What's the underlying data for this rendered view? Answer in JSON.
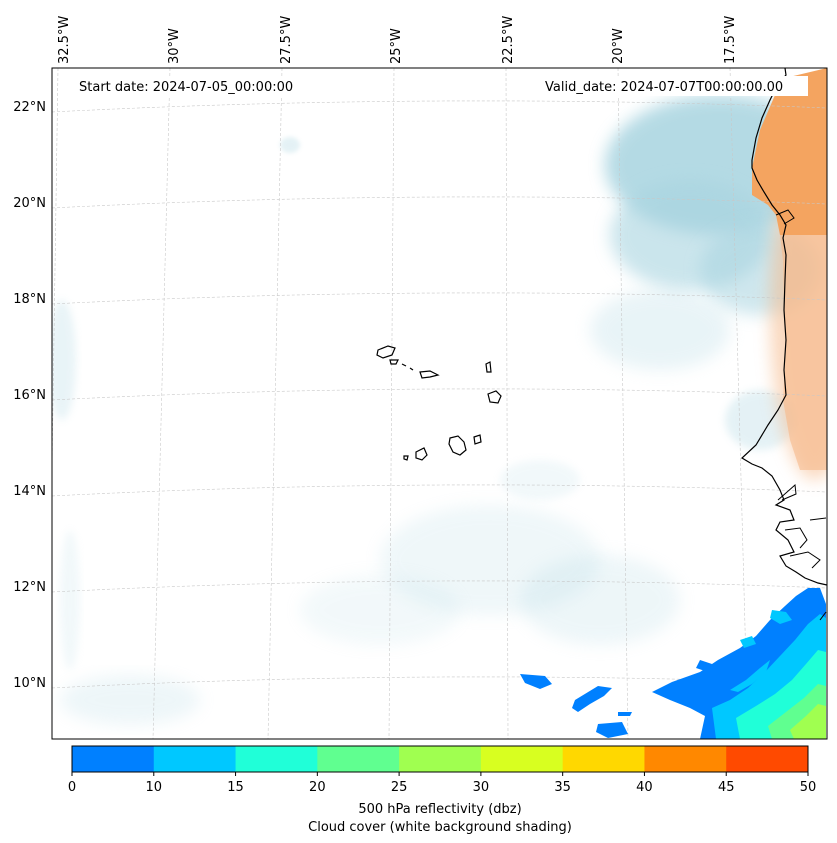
{
  "map": {
    "start_date_text": "Start date: 2024-07-05_00:00:00",
    "valid_date_text": "Valid_date: 2024-07-07T00:00:00.00",
    "lon_labels": [
      "32.5°W",
      "30°W",
      "27.5°W",
      "25°W",
      "22.5°W",
      "20°W",
      "17.5°W"
    ],
    "lat_labels": [
      "22°N",
      "20°N",
      "18°N",
      "16°N",
      "14°N",
      "12°N",
      "10°N"
    ],
    "gridlines": true
  },
  "colorbar": {
    "ticks": [
      "0",
      "10",
      "15",
      "20",
      "25",
      "30",
      "35",
      "40",
      "45",
      "50"
    ],
    "colors": [
      "#0080ff",
      "#00c8ff",
      "#20ffd8",
      "#60ff90",
      "#a0ff50",
      "#d8ff20",
      "#ffd800",
      "#ff8800",
      "#ff4a00"
    ],
    "label_line1": "500 hPa reflectivity (dbz)",
    "label_line2": "Cloud cover (white background shading)"
  },
  "colors": {
    "land": "#f4a460",
    "cloud": "#a8d4e0",
    "coast": "#000000",
    "grid": "#b8b8b8"
  }
}
